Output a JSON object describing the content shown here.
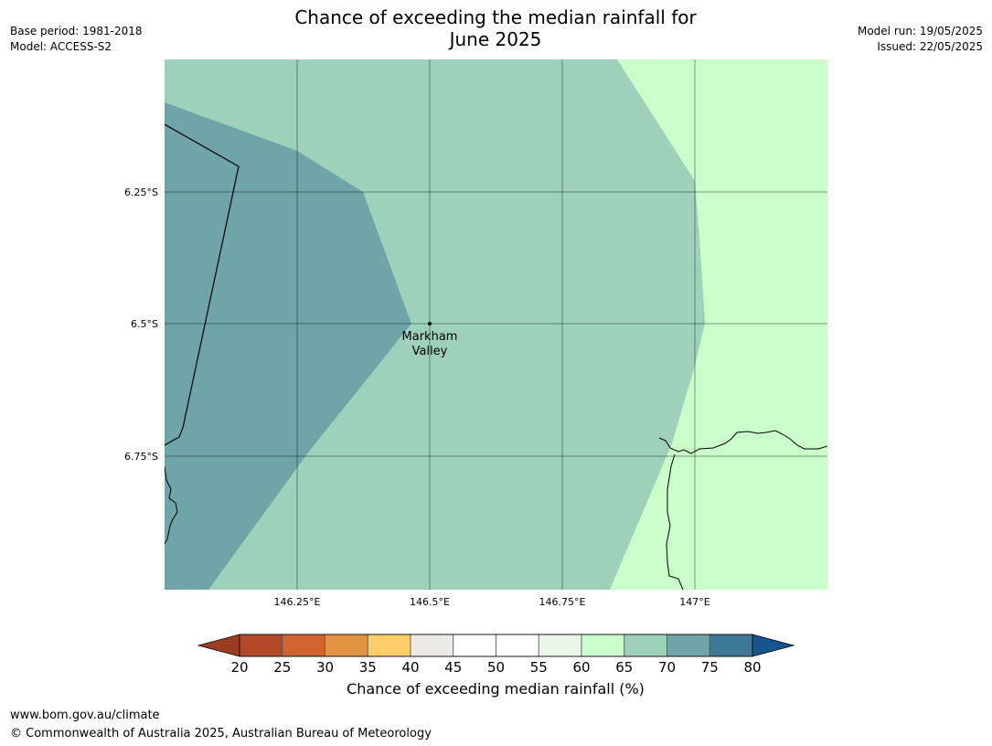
{
  "header": {
    "title_line1": "Chance of exceeding the median rainfall for",
    "title_line2": "June 2025",
    "base_period": "Base period: 1981-2018",
    "model": "Model: ACCESS-S2",
    "model_run": "Model run: 19/05/2025",
    "issued": "Issued: 22/05/2025"
  },
  "map": {
    "lat_ticks": [
      "6.25°S",
      "6.5°S",
      "6.75°S"
    ],
    "lon_ticks": [
      "146.25°E",
      "146.5°E",
      "146.75°E",
      "147°E"
    ],
    "location": {
      "name_line1": "Markham",
      "name_line2": "Valley",
      "lon": 146.5,
      "lat": -6.5
    },
    "region_colors": {
      "band_70_75": "#6fa4a8",
      "band_65_70": "#9ed1b9",
      "band_60_65": "#cbfdca"
    }
  },
  "colorbar": {
    "label": "Chance of exceeding median rainfall (%)",
    "ticks": [
      "20",
      "25",
      "30",
      "35",
      "40",
      "45",
      "50",
      "55",
      "60",
      "65",
      "70",
      "75",
      "80"
    ],
    "under_color": "#9c3d22",
    "over_color": "#17548e",
    "colors": [
      "#b24825",
      "#cf6431",
      "#e39445",
      "#fece69",
      "#ede9e4",
      "#ffffff",
      "#ffffff",
      "#e9f6e8",
      "#cbfdca",
      "#9ed1b9",
      "#6fa4a8",
      "#3f7897"
    ]
  },
  "footer": {
    "url": "www.bom.gov.au/climate",
    "copyright": "© Commonwealth of Australia 2025, Australian Bureau of Meteorology"
  }
}
